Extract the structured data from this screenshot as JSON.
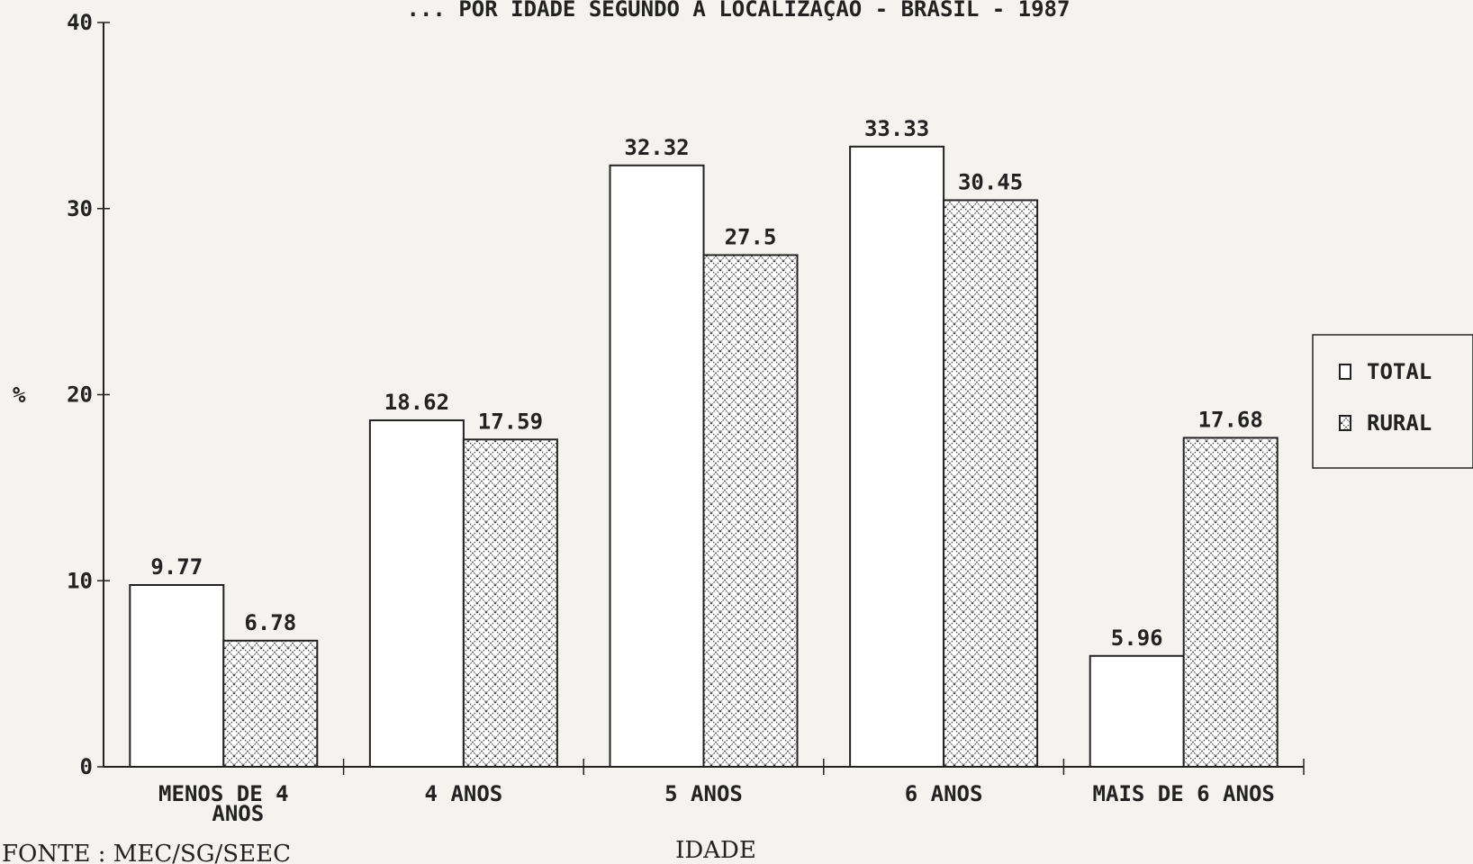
{
  "chart_data": {
    "type": "bar",
    "title": "... POR IDADE  SEGUNDO A LOCALIZAÇÃO - BRASIL - 1987",
    "ylabel": "%",
    "xlabel": "IDADE",
    "ylim": [
      0,
      40
    ],
    "yticks": [
      "0",
      "10",
      "20",
      "30",
      "40"
    ],
    "categories": [
      [
        "MENOS DE 4",
        "ANOS"
      ],
      [
        "4 ANOS"
      ],
      [
        "5 ANOS"
      ],
      [
        "6 ANOS"
      ],
      [
        "MAIS DE 6 ANOS"
      ]
    ],
    "series": [
      {
        "name": "TOTAL",
        "values": [
          9.77,
          18.62,
          32.32,
          33.33,
          5.96
        ],
        "labels": [
          "9.77",
          "18.62",
          "32.32",
          "33.33",
          "5.96"
        ],
        "fill": "plain"
      },
      {
        "name": "RURAL",
        "values": [
          6.78,
          17.59,
          27.5,
          30.45,
          17.68
        ],
        "labels": [
          "6.78",
          "17.59",
          "27.5",
          "30.45",
          "17.68"
        ],
        "fill": "crosshatch"
      }
    ],
    "legend_position": "right",
    "grid": false
  },
  "source": "FONTE : MEC/SG/SEEC",
  "colors": {
    "background": "#f4f3ef",
    "ink": "#1a1a1a",
    "bar_fill": "#ffffff"
  }
}
